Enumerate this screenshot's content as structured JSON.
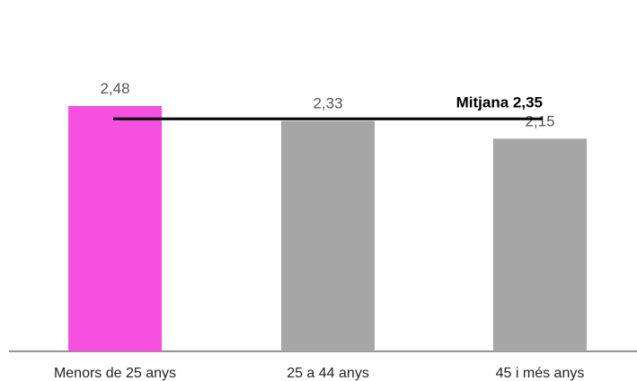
{
  "chart_data": {
    "type": "bar",
    "categories": [
      "Menors de 25 anys",
      "25 a 44 anys",
      "45 i més anys"
    ],
    "values": [
      2.48,
      2.33,
      2.15
    ],
    "value_labels": [
      "2,48",
      "2,33",
      "2,15"
    ],
    "bar_colors": [
      "#f550e0",
      "#a6a6a6",
      "#a6a6a6"
    ],
    "reference_line": {
      "value": 2.35,
      "label": "Mitjana 2,35",
      "color": "#000000"
    },
    "ylim": [
      0,
      2.6
    ],
    "grid": false,
    "title": "",
    "xlabel": "",
    "ylabel": ""
  }
}
